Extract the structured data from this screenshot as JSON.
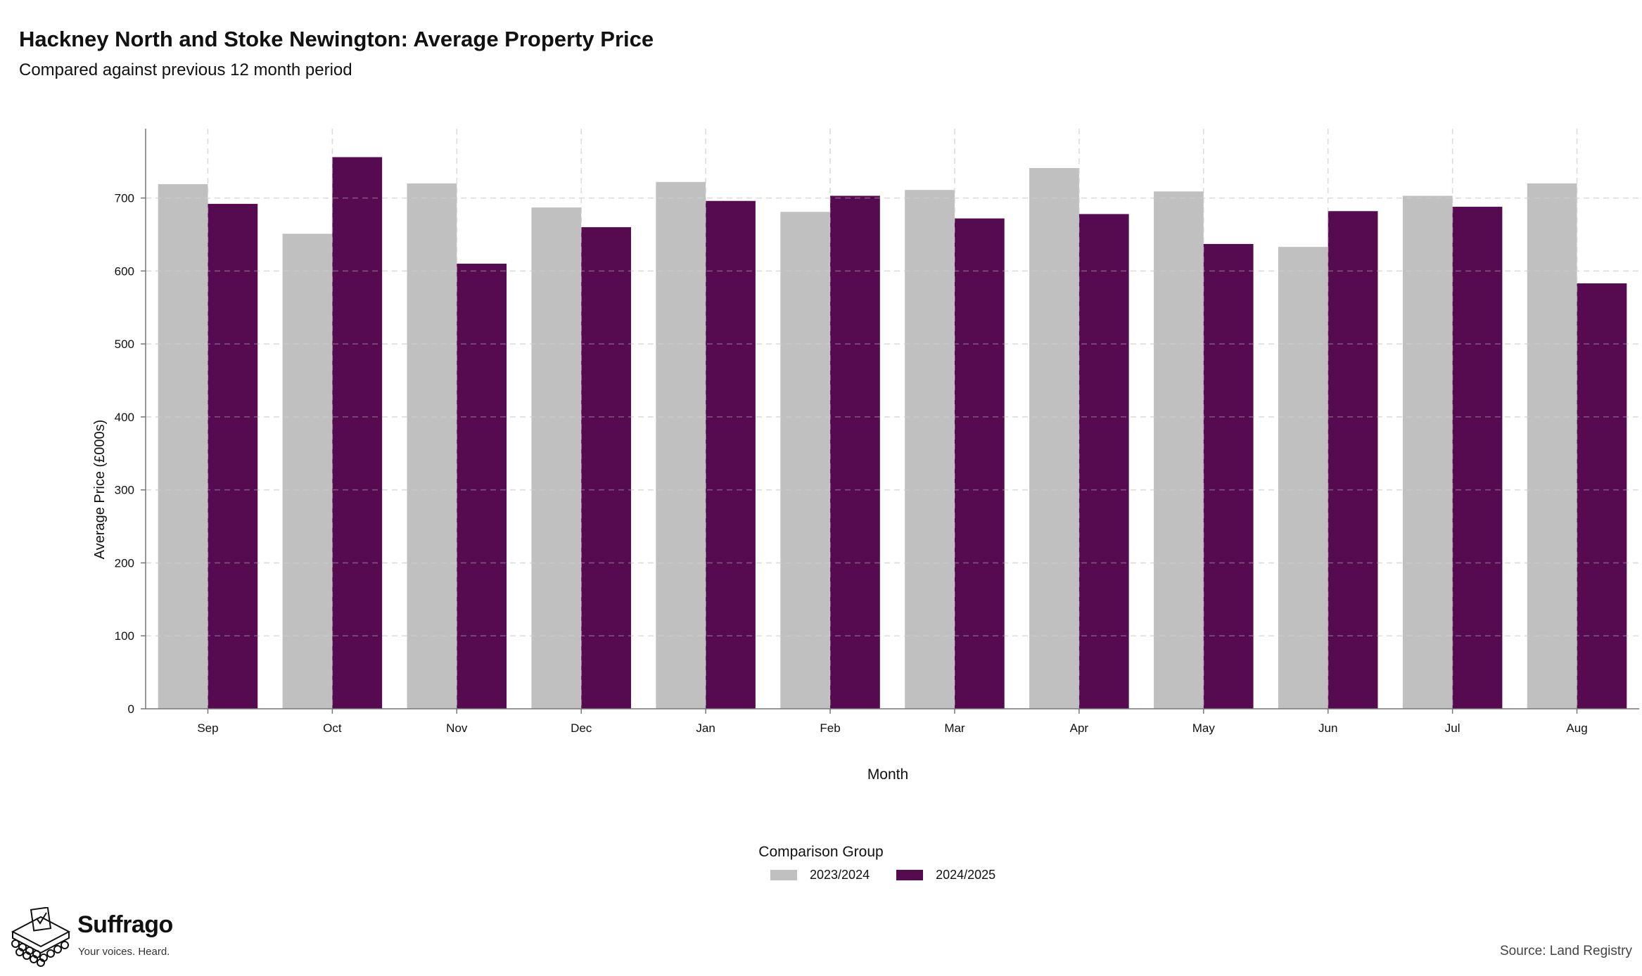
{
  "header": {
    "title": "Hackney North and Stoke Newington: Average Property Price",
    "subtitle": "Compared against previous 12 month period"
  },
  "chart_data": {
    "type": "bar",
    "title": "Hackney North and Stoke Newington: Average Property Price",
    "subtitle": "Compared against previous 12 month period",
    "xlabel": "Month",
    "ylabel": "Average Price (£000s)",
    "categories": [
      "Sep",
      "Oct",
      "Nov",
      "Dec",
      "Jan",
      "Feb",
      "Mar",
      "Apr",
      "May",
      "Jun",
      "Jul",
      "Aug"
    ],
    "series": [
      {
        "name": "2023/2024",
        "color": "#c0c0c0",
        "values": [
          719,
          651,
          720,
          687,
          722,
          681,
          711,
          741,
          709,
          633,
          703,
          720
        ]
      },
      {
        "name": "2024/2025",
        "color": "#560b51",
        "values": [
          692,
          756,
          610,
          660,
          696,
          703,
          672,
          678,
          637,
          682,
          688,
          583
        ]
      }
    ],
    "ylim": [
      0,
      795
    ],
    "yticks": [
      0,
      100,
      200,
      300,
      400,
      500,
      600,
      700
    ],
    "grid": true,
    "legend": {
      "title": "Comparison Group",
      "position": "bottom"
    }
  },
  "footer": {
    "brand": "Suffrago",
    "tagline": "Your voices. Heard.",
    "source": "Source: Land Registry",
    "logo_icon": "ballot-box-icon"
  }
}
